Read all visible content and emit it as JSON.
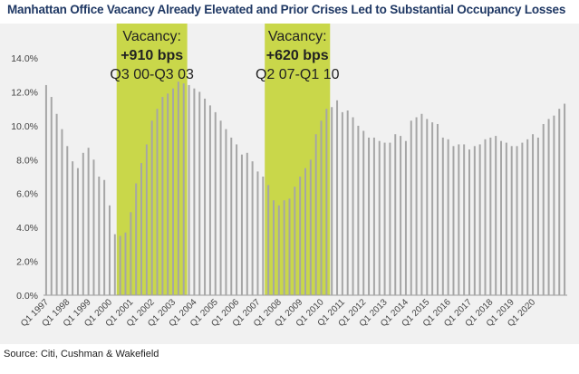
{
  "title": "Manhattan Office Vacancy Already Elevated and Prior Crises Led to Substantial Occupancy Losses",
  "source": "Source: Citi, Cushman & Wakefield",
  "colors": {
    "bar": "#a6a6a6",
    "highlight": "#c9d74a",
    "title": "#1f3864",
    "background": "#f1f1f1"
  },
  "chart_data": {
    "type": "bar",
    "title": "Manhattan Office Vacancy Already Elevated and Prior Crises Led to Substantial Occupancy Losses",
    "xlabel": "",
    "ylabel": "",
    "ylim": [
      0,
      14
    ],
    "y_ticks": [
      "0.0%",
      "2.0%",
      "4.0%",
      "6.0%",
      "8.0%",
      "10.0%",
      "12.0%",
      "14.0%"
    ],
    "x_tick_labels": [
      "Q1 1997",
      "Q1 1998",
      "Q1 1999",
      "Q1 2000",
      "Q1 2001",
      "Q1 2002",
      "Q1 2003",
      "Q1 2004",
      "Q1 2005",
      "Q1 2006",
      "Q1 2007",
      "Q1 2008",
      "Q1 2009",
      "Q1 2010",
      "Q1 2011",
      "Q1 2012",
      "Q1 2013",
      "Q1 2014",
      "Q1 2015",
      "Q1 2016",
      "Q1 2017",
      "Q1 2018",
      "Q1 2019",
      "Q1 2020"
    ],
    "grid": false,
    "series": [
      {
        "values": [
          12.4,
          11.7,
          10.7,
          9.8,
          8.8,
          7.9,
          7.5,
          8.4,
          8.7,
          8.0,
          7.0,
          6.8,
          5.3,
          3.6,
          3.5,
          3.7,
          4.9,
          6.6,
          7.8,
          8.9,
          10.3,
          11.0,
          11.7,
          11.9,
          12.2,
          12.6,
          12.5,
          12.4,
          12.2,
          12.0,
          11.6,
          11.2,
          10.8,
          10.3,
          9.8,
          9.3,
          8.9,
          8.3,
          8.4,
          7.9,
          7.3,
          7.0,
          6.5,
          5.6,
          5.3,
          5.6,
          5.7,
          6.4,
          7.0,
          7.5,
          8.0,
          9.5,
          10.3,
          11.0,
          11.1,
          11.5,
          10.8,
          10.9,
          10.5,
          10.0,
          9.7,
          9.3,
          9.3,
          9.1,
          9.0,
          9.0,
          9.5,
          9.4,
          9.1,
          10.3,
          10.5,
          10.7,
          10.4,
          10.2,
          10.1,
          9.3,
          9.2,
          8.8,
          8.9,
          8.9,
          8.6,
          8.8,
          8.9,
          9.2,
          9.3,
          9.4,
          9.1,
          9.0,
          8.8,
          8.8,
          9.0,
          9.2,
          9.5,
          9.3,
          10.1,
          10.4,
          10.6,
          11.0,
          11.3
        ]
      }
    ],
    "annotations": [
      {
        "label": "Vacancy:",
        "change": "+910 bps",
        "period": "Q3 00-Q3 03",
        "start_index": 14,
        "end_index": 26
      },
      {
        "label": "Vacancy:",
        "change": "+620 bps",
        "period": "Q2 07-Q1 10",
        "start_index": 42,
        "end_index": 53
      }
    ]
  }
}
